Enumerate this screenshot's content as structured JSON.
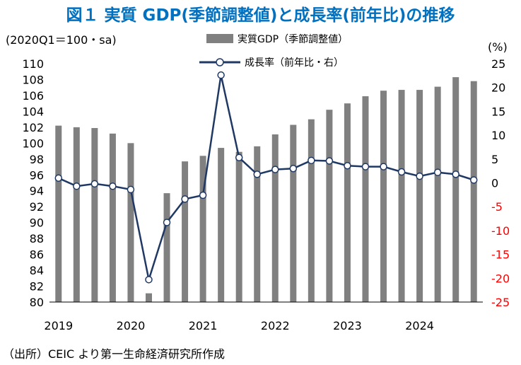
{
  "title": "図１ 実質 GDP(季節調整値)と成長率(前年比)の推移",
  "source": "（出所）CEIC より第一生命経済研究所作成",
  "colors": {
    "title": "#0070C0",
    "bars": "#808080",
    "line": "#1F3864",
    "right_axis": "#FF0000"
  },
  "chart_data": {
    "type": "bar+line",
    "left_axis_label": "(2020Q1＝100・sa)",
    "right_axis_label": "(%)",
    "ylim_left": [
      80,
      110
    ],
    "ylim_right": [
      -25,
      25
    ],
    "left_ticks": [
      80,
      82,
      84,
      86,
      88,
      90,
      92,
      94,
      96,
      98,
      100,
      102,
      104,
      106,
      108,
      110
    ],
    "right_ticks": [
      -25,
      -20,
      -15,
      -10,
      -5,
      0,
      5,
      10,
      15,
      20,
      25
    ],
    "year_labels": [
      "2019",
      "2020",
      "2021",
      "2022",
      "2023",
      "2024"
    ],
    "quarters": [
      "2019Q1",
      "2019Q2",
      "2019Q3",
      "2019Q4",
      "2020Q1",
      "2020Q2",
      "2020Q3",
      "2020Q4",
      "2021Q1",
      "2021Q2",
      "2021Q3",
      "2021Q4",
      "2022Q1",
      "2022Q2",
      "2022Q3",
      "2022Q4",
      "2023Q1",
      "2023Q2",
      "2023Q3",
      "2023Q4",
      "2024Q1",
      "2024Q2",
      "2024Q3",
      "2024Q4"
    ],
    "series": [
      {
        "name": "実質GDP（季節調整値）",
        "type": "bar",
        "axis": "left",
        "values": [
          102.2,
          102.0,
          101.9,
          101.2,
          100.0,
          81.1,
          93.7,
          97.7,
          98.4,
          99.4,
          98.9,
          99.6,
          101.1,
          102.3,
          103.0,
          104.2,
          105.0,
          105.9,
          106.6,
          106.7,
          106.7,
          107.1,
          108.3,
          107.8
        ]
      },
      {
        "name": "成長率（前年比・右）",
        "type": "line",
        "axis": "right",
        "values": [
          1.0,
          -0.7,
          -0.2,
          -0.7,
          -1.4,
          -20.3,
          -8.3,
          -3.4,
          -2.6,
          22.6,
          5.3,
          1.8,
          2.8,
          3.0,
          4.7,
          4.6,
          3.6,
          3.4,
          3.4,
          2.3,
          1.4,
          2.2,
          1.8,
          0.6
        ]
      }
    ],
    "grid": false,
    "legend_position": "top-center"
  }
}
